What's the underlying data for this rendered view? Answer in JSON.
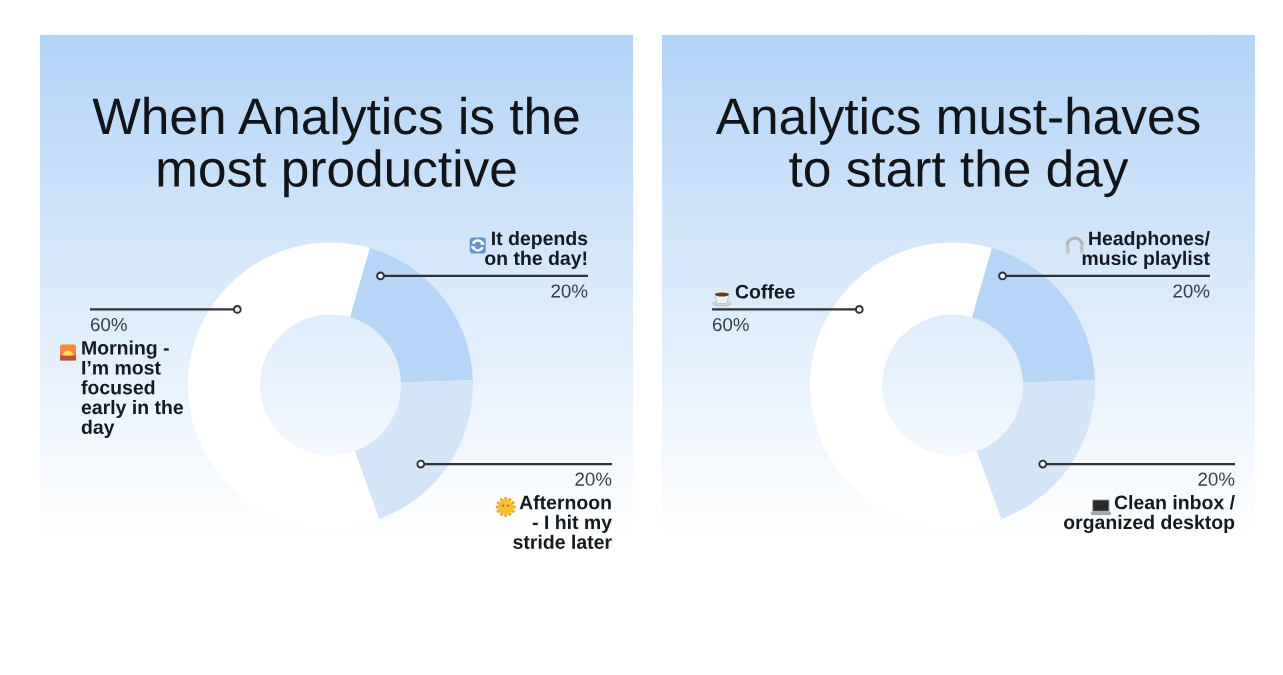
{
  "chart_data": [
    {
      "type": "donut",
      "title": "When Analytics is the\nmost productive",
      "categories": [
        "It depends\non the day!",
        "Afternoon\n- I hit my\nstride later",
        "Morning -\nI’m most\nfocused\nearly in the\nday"
      ],
      "values": [
        20,
        20,
        60
      ],
      "colors": [
        "#b7d5f7",
        "#d5e5f8",
        "#ffffff"
      ],
      "value_labels": [
        "20%",
        "20%",
        "60%"
      ]
    },
    {
      "type": "donut",
      "title": "Analytics must-haves\nto start the day",
      "categories": [
        "Headphones/\nmusic playlist",
        "Clean inbox /\norganized desktop",
        "Coffee"
      ],
      "values": [
        20,
        20,
        60
      ],
      "colors": [
        "#b7d5f7",
        "#d5e5f8",
        "#ffffff"
      ],
      "value_labels": [
        "20%",
        "20%",
        "60%"
      ]
    }
  ]
}
